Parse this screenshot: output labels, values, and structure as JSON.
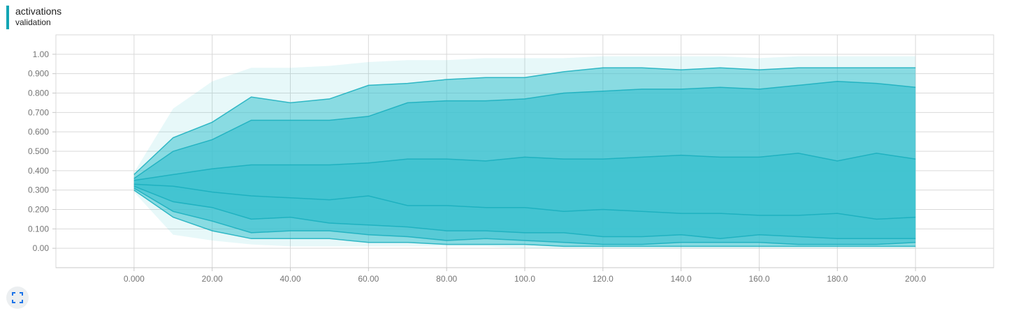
{
  "header": {
    "title": "activations",
    "subtitle": "validation"
  },
  "colors": {
    "accent": "#12a5b4",
    "band": "#3cc2cf",
    "line": "#18aebd",
    "grid": "#d9d9d9",
    "axis": "#c8c8c8"
  },
  "expand_button": {
    "icon": "expand-icon"
  },
  "chart_data": {
    "type": "area",
    "chart_kind": "distribution-percentile-bands",
    "x": [
      0,
      10,
      20,
      30,
      40,
      50,
      60,
      70,
      80,
      90,
      100,
      110,
      120,
      130,
      140,
      150,
      160,
      170,
      180,
      190,
      200
    ],
    "xlim": [
      -20,
      220
    ],
    "ylim": [
      -0.1,
      1.1
    ],
    "x_tick_values": [
      0,
      20,
      40,
      60,
      80,
      100,
      120,
      140,
      160,
      180,
      200
    ],
    "x_tick_labels": [
      "0.000",
      "20.00",
      "40.00",
      "60.00",
      "80.00",
      "100.0",
      "120.0",
      "140.0",
      "160.0",
      "180.0",
      "200.0"
    ],
    "y_tick_values": [
      0,
      0.1,
      0.2,
      0.3,
      0.4,
      0.5,
      0.6,
      0.7,
      0.8,
      0.9,
      1.0
    ],
    "y_tick_labels": [
      "0.00",
      "0.100",
      "0.200",
      "0.300",
      "0.400",
      "0.500",
      "0.600",
      "0.700",
      "0.800",
      "0.900",
      "1.00"
    ],
    "grid": true,
    "series": [
      {
        "values": [
          0.39,
          0.72,
          0.86,
          0.93,
          0.93,
          0.94,
          0.96,
          0.97,
          0.97,
          0.98,
          0.98,
          0.98,
          0.99,
          0.99,
          0.99,
          0.99,
          0.98,
          0.99,
          0.99,
          0.99,
          0.99
        ]
      },
      {
        "values": [
          0.38,
          0.57,
          0.65,
          0.78,
          0.75,
          0.77,
          0.84,
          0.85,
          0.87,
          0.88,
          0.88,
          0.91,
          0.93,
          0.93,
          0.92,
          0.93,
          0.92,
          0.93,
          0.93,
          0.93,
          0.93
        ]
      },
      {
        "values": [
          0.36,
          0.5,
          0.56,
          0.66,
          0.66,
          0.66,
          0.68,
          0.75,
          0.76,
          0.76,
          0.77,
          0.8,
          0.81,
          0.82,
          0.82,
          0.83,
          0.82,
          0.84,
          0.86,
          0.85,
          0.83
        ]
      },
      {
        "values": [
          0.35,
          0.38,
          0.41,
          0.43,
          0.43,
          0.43,
          0.44,
          0.46,
          0.46,
          0.45,
          0.47,
          0.46,
          0.46,
          0.47,
          0.48,
          0.47,
          0.47,
          0.49,
          0.45,
          0.49,
          0.46
        ]
      },
      {
        "values": [
          0.33,
          0.32,
          0.29,
          0.27,
          0.26,
          0.25,
          0.27,
          0.22,
          0.22,
          0.21,
          0.21,
          0.19,
          0.2,
          0.19,
          0.18,
          0.18,
          0.17,
          0.17,
          0.18,
          0.15,
          0.16
        ]
      },
      {
        "values": [
          0.32,
          0.24,
          0.21,
          0.15,
          0.16,
          0.13,
          0.12,
          0.11,
          0.09,
          0.09,
          0.08,
          0.08,
          0.06,
          0.06,
          0.07,
          0.05,
          0.07,
          0.06,
          0.05,
          0.05,
          0.05
        ]
      },
      {
        "values": [
          0.31,
          0.19,
          0.14,
          0.08,
          0.09,
          0.09,
          0.07,
          0.06,
          0.04,
          0.05,
          0.04,
          0.03,
          0.02,
          0.02,
          0.03,
          0.03,
          0.03,
          0.02,
          0.02,
          0.02,
          0.03
        ]
      },
      {
        "values": [
          0.3,
          0.16,
          0.09,
          0.05,
          0.05,
          0.05,
          0.03,
          0.03,
          0.02,
          0.02,
          0.02,
          0.01,
          0.01,
          0.01,
          0.01,
          0.01,
          0.01,
          0.01,
          0.01,
          0.01,
          0.01
        ]
      },
      {
        "values": [
          0.29,
          0.07,
          0.04,
          0.02,
          0.01,
          0.01,
          0.01,
          0.01,
          0.01,
          0.01,
          0.0,
          0.0,
          0.0,
          0.0,
          0.0,
          0.0,
          0.0,
          0.0,
          0.0,
          0.0,
          0.0
        ]
      }
    ]
  }
}
